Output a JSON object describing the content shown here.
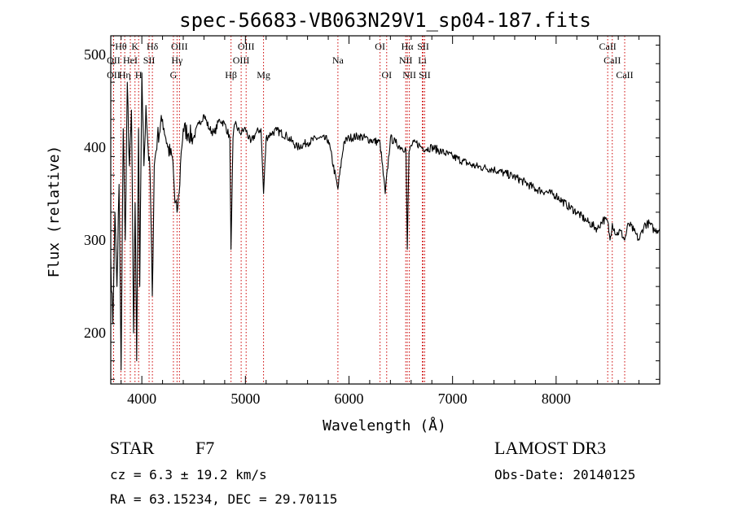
{
  "chart_data": {
    "type": "line",
    "title": "spec-56683-VB063N29V1_sp04-187.fits",
    "xlabel": "Wavelength (Å)",
    "ylabel": "Flux (relative)",
    "xlim": [
      3700,
      9000
    ],
    "ylim": [
      145,
      520
    ],
    "xticks": [
      4000,
      5000,
      6000,
      7000,
      8000
    ],
    "yticks": [
      200,
      300,
      400,
      500
    ],
    "xtick_labels": [
      "4000",
      "5000",
      "6000",
      "7000",
      "8000"
    ],
    "ytick_labels": [
      "200",
      "300",
      "400",
      "500"
    ],
    "series": [
      {
        "name": "flux",
        "color": "#000000",
        "x": [
          3700,
          3720,
          3740,
          3760,
          3780,
          3800,
          3820,
          3840,
          3860,
          3880,
          3900,
          3920,
          3935,
          3950,
          3968,
          3980,
          4000,
          4020,
          4040,
          4060,
          4080,
          4101,
          4120,
          4150,
          4200,
          4250,
          4300,
          4320,
          4340,
          4360,
          4380,
          4400,
          4450,
          4500,
          4550,
          4600,
          4650,
          4700,
          4750,
          4800,
          4850,
          4861,
          4880,
          4900,
          4950,
          5000,
          5050,
          5100,
          5150,
          5175,
          5200,
          5250,
          5300,
          5400,
          5500,
          5600,
          5700,
          5800,
          5893,
          5950,
          6000,
          6100,
          6200,
          6300,
          6350,
          6400,
          6450,
          6500,
          6550,
          6563,
          6580,
          6600,
          6650,
          6700,
          6750,
          6800,
          6900,
          7000,
          7100,
          7200,
          7300,
          7400,
          7500,
          7600,
          7700,
          7800,
          7900,
          8000,
          8100,
          8200,
          8300,
          8400,
          8450,
          8498,
          8520,
          8542,
          8580,
          8620,
          8662,
          8700,
          8750,
          8800,
          8850,
          8900,
          8950,
          9000
        ],
        "values": [
          280,
          210,
          330,
          250,
          360,
          160,
          420,
          300,
          470,
          380,
          440,
          200,
          340,
          170,
          420,
          250,
          480,
          380,
          445,
          400,
          370,
          240,
          380,
          410,
          430,
          400,
          385,
          340,
          330,
          350,
          395,
          420,
          415,
          410,
          425,
          435,
          420,
          415,
          430,
          425,
          410,
          290,
          410,
          425,
          415,
          420,
          405,
          415,
          420,
          350,
          410,
          415,
          418,
          412,
          400,
          405,
          410,
          408,
          355,
          405,
          410,
          412,
          408,
          405,
          350,
          410,
          405,
          400,
          398,
          290,
          395,
          402,
          405,
          400,
          398,
          400,
          395,
          390,
          385,
          380,
          378,
          376,
          372,
          368,
          362,
          355,
          352,
          348,
          338,
          330,
          320,
          312,
          322,
          320,
          300,
          318,
          306,
          310,
          300,
          318,
          310,
          300,
          316,
          318,
          310,
          312
        ]
      }
    ],
    "lines": [
      {
        "name": "Hθ",
        "x": 3798,
        "row": 0
      },
      {
        "name": "OII",
        "x": 3727,
        "row": 1
      },
      {
        "name": "OII",
        "x": 3727,
        "row": 2
      },
      {
        "name": "K",
        "x": 3934,
        "row": 0
      },
      {
        "name": "HeI",
        "x": 3889,
        "row": 1
      },
      {
        "name": "Hη",
        "x": 3835,
        "row": 2
      },
      {
        "name": "H",
        "x": 3969,
        "row": 2
      },
      {
        "name": "Hδ",
        "x": 4102,
        "row": 0
      },
      {
        "name": "SII",
        "x": 4070,
        "row": 1
      },
      {
        "name": "OIII",
        "x": 4363,
        "row": 0
      },
      {
        "name": "Hγ",
        "x": 4340,
        "row": 1
      },
      {
        "name": "G",
        "x": 4305,
        "row": 2
      },
      {
        "name": "Hβ",
        "x": 4861,
        "row": 2
      },
      {
        "name": "OIII",
        "x": 5007,
        "row": 0
      },
      {
        "name": "OIII",
        "x": 4959,
        "row": 1
      },
      {
        "name": "Mg",
        "x": 5175,
        "row": 2
      },
      {
        "name": "Na",
        "x": 5893,
        "row": 1
      },
      {
        "name": "OI",
        "x": 6300,
        "row": 0
      },
      {
        "name": "OI",
        "x": 6364,
        "row": 2
      },
      {
        "name": "Hα",
        "x": 6563,
        "row": 0
      },
      {
        "name": "NII",
        "x": 6548,
        "row": 1
      },
      {
        "name": "NII",
        "x": 6583,
        "row": 2
      },
      {
        "name": "SII",
        "x": 6716,
        "row": 0
      },
      {
        "name": "Li",
        "x": 6708,
        "row": 1
      },
      {
        "name": "SII",
        "x": 6731,
        "row": 2
      },
      {
        "name": "CaII",
        "x": 8498,
        "row": 0
      },
      {
        "name": "CaII",
        "x": 8542,
        "row": 1
      },
      {
        "name": "CaII",
        "x": 8662,
        "row": 2
      }
    ]
  },
  "info": {
    "class_label": "STAR",
    "subclass": "F7",
    "survey": "LAMOST DR3",
    "cz": "cz = 6.3 ± 19.2 km/s",
    "obs_date": "Obs-Date: 20140125",
    "coords": "RA =  63.15234, DEC =  29.70115"
  },
  "colors": {
    "line_marker": "#cc0000",
    "spectrum": "#000000",
    "axis": "#000000"
  }
}
